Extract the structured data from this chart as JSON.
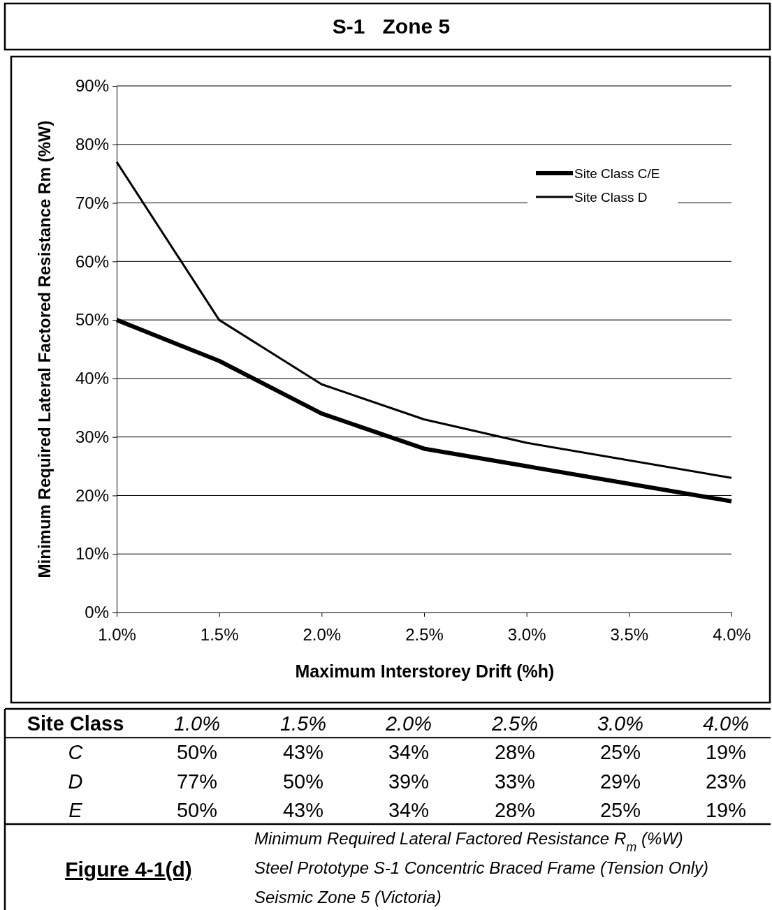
{
  "chart_data": [
    {
      "type": "line",
      "title": "S-1   Zone 5",
      "xlabel": "Maximum Interstorey Drift (%h)",
      "ylabel": "Minimum Required Lateral Factored Resistance Rm (%W)",
      "x": [
        1.0,
        1.5,
        2.0,
        2.5,
        3.0,
        4.0
      ],
      "series": [
        {
          "name": "Site Class C/E",
          "color": "#000000",
          "values": [
            50,
            43,
            34,
            28,
            25,
            19
          ]
        },
        {
          "name": "Site Class D",
          "color": "#000000",
          "values": [
            77,
            50,
            39,
            33,
            29,
            23
          ]
        }
      ],
      "xlim": [
        1.0,
        4.0
      ],
      "xticks": [
        {
          "value": 1.0,
          "label": "1.0%"
        },
        {
          "value": 1.5,
          "label": "1.5%"
        },
        {
          "value": 2.0,
          "label": "2.0%"
        },
        {
          "value": 2.5,
          "label": "2.5%"
        },
        {
          "value": 3.0,
          "label": "3.0%"
        },
        {
          "value": 3.5,
          "label": "3.5%"
        },
        {
          "value": 4.0,
          "label": "4.0%"
        }
      ],
      "ylim": [
        0,
        90
      ],
      "yticks": [
        {
          "value": 0,
          "label": "0%"
        },
        {
          "value": 10,
          "label": "10%"
        },
        {
          "value": 20,
          "label": "20%"
        },
        {
          "value": 30,
          "label": "30%"
        },
        {
          "value": 40,
          "label": "40%"
        },
        {
          "value": 50,
          "label": "50%"
        },
        {
          "value": 60,
          "label": "60%"
        },
        {
          "value": 70,
          "label": "70%"
        },
        {
          "value": 80,
          "label": "80%"
        },
        {
          "value": 90,
          "label": "90%"
        }
      ],
      "grid": "y",
      "legend": "top right",
      "marker": "none",
      "line_style": "solid",
      "annotations": [
        "Figure 4-1(d)",
        "Minimum Required Lateral Factored Resistance R$_{m}$ (%W)",
        "Steel Prototype S-1 Concentric Braced Frame (Tension Only)",
        "Seismic Zone 5 (Victoria)"
      ]
    },
    {
      "type": "heatmap",
      "ylabel": "Site Class",
      "categories": [
        "1.0%",
        "1.5%",
        "2.0%",
        "2.5%",
        "3.0%",
        "4.0%"
      ],
      "y_categories": [
        "C",
        "D",
        "E"
      ],
      "cells": [
        [
          50,
          43,
          34,
          28,
          25,
          19
        ],
        [
          77,
          50,
          39,
          33,
          29,
          23
        ],
        [
          50,
          43,
          34,
          28,
          25,
          19
        ]
      ],
      "cell_labels": [
        [
          "50%",
          "43%",
          "34%",
          "28%",
          "25%",
          "19%"
        ],
        [
          "77%",
          "50%",
          "39%",
          "33%",
          "29%",
          "23%"
        ],
        [
          "50%",
          "43%",
          "34%",
          "28%",
          "25%",
          "19%"
        ]
      ]
    }
  ]
}
